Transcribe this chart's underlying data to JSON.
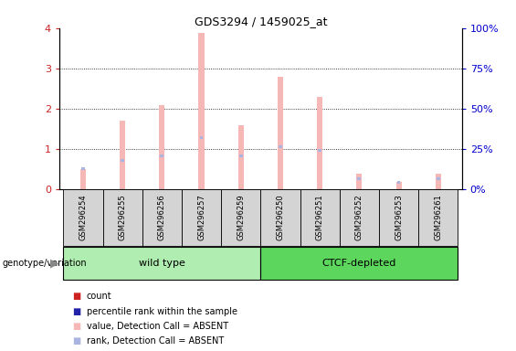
{
  "title": "GDS3294 / 1459025_at",
  "samples": [
    "GSM296254",
    "GSM296255",
    "GSM296256",
    "GSM296257",
    "GSM296259",
    "GSM296250",
    "GSM296251",
    "GSM296252",
    "GSM296253",
    "GSM296261"
  ],
  "absent_value": [
    0.5,
    1.7,
    2.1,
    3.87,
    1.6,
    2.8,
    2.3,
    0.4,
    0.2,
    0.4
  ],
  "absent_rank": [
    0.52,
    0.72,
    0.83,
    1.28,
    0.84,
    1.07,
    0.97,
    0.27,
    0.17,
    0.27
  ],
  "ylim_left": [
    0,
    4
  ],
  "ylim_right": [
    0,
    100
  ],
  "yticks_left": [
    0,
    1,
    2,
    3,
    4
  ],
  "yticks_right": [
    0,
    25,
    50,
    75,
    100
  ],
  "yticklabels_right": [
    "0%",
    "25%",
    "50%",
    "75%",
    "100%"
  ],
  "color_absent_value": "#f5b8b7",
  "color_absent_rank": "#aab4e0",
  "color_count": "#cc2222",
  "color_percentile": "#2222aa",
  "group_wild_color": "#b0edb0",
  "group_ctcf_color": "#5cd65c",
  "legend_items": [
    {
      "label": "count",
      "color": "#cc2222"
    },
    {
      "label": "percentile rank within the sample",
      "color": "#2222aa"
    },
    {
      "label": "value, Detection Call = ABSENT",
      "color": "#f5b8b7"
    },
    {
      "label": "rank, Detection Call = ABSENT",
      "color": "#aab4e0"
    }
  ],
  "group_label_wild": "wild type",
  "group_label_ctcf": "CTCF-depleted",
  "genotype_label": "genotype/variation",
  "n_wild": 5,
  "n_ctcf": 5
}
